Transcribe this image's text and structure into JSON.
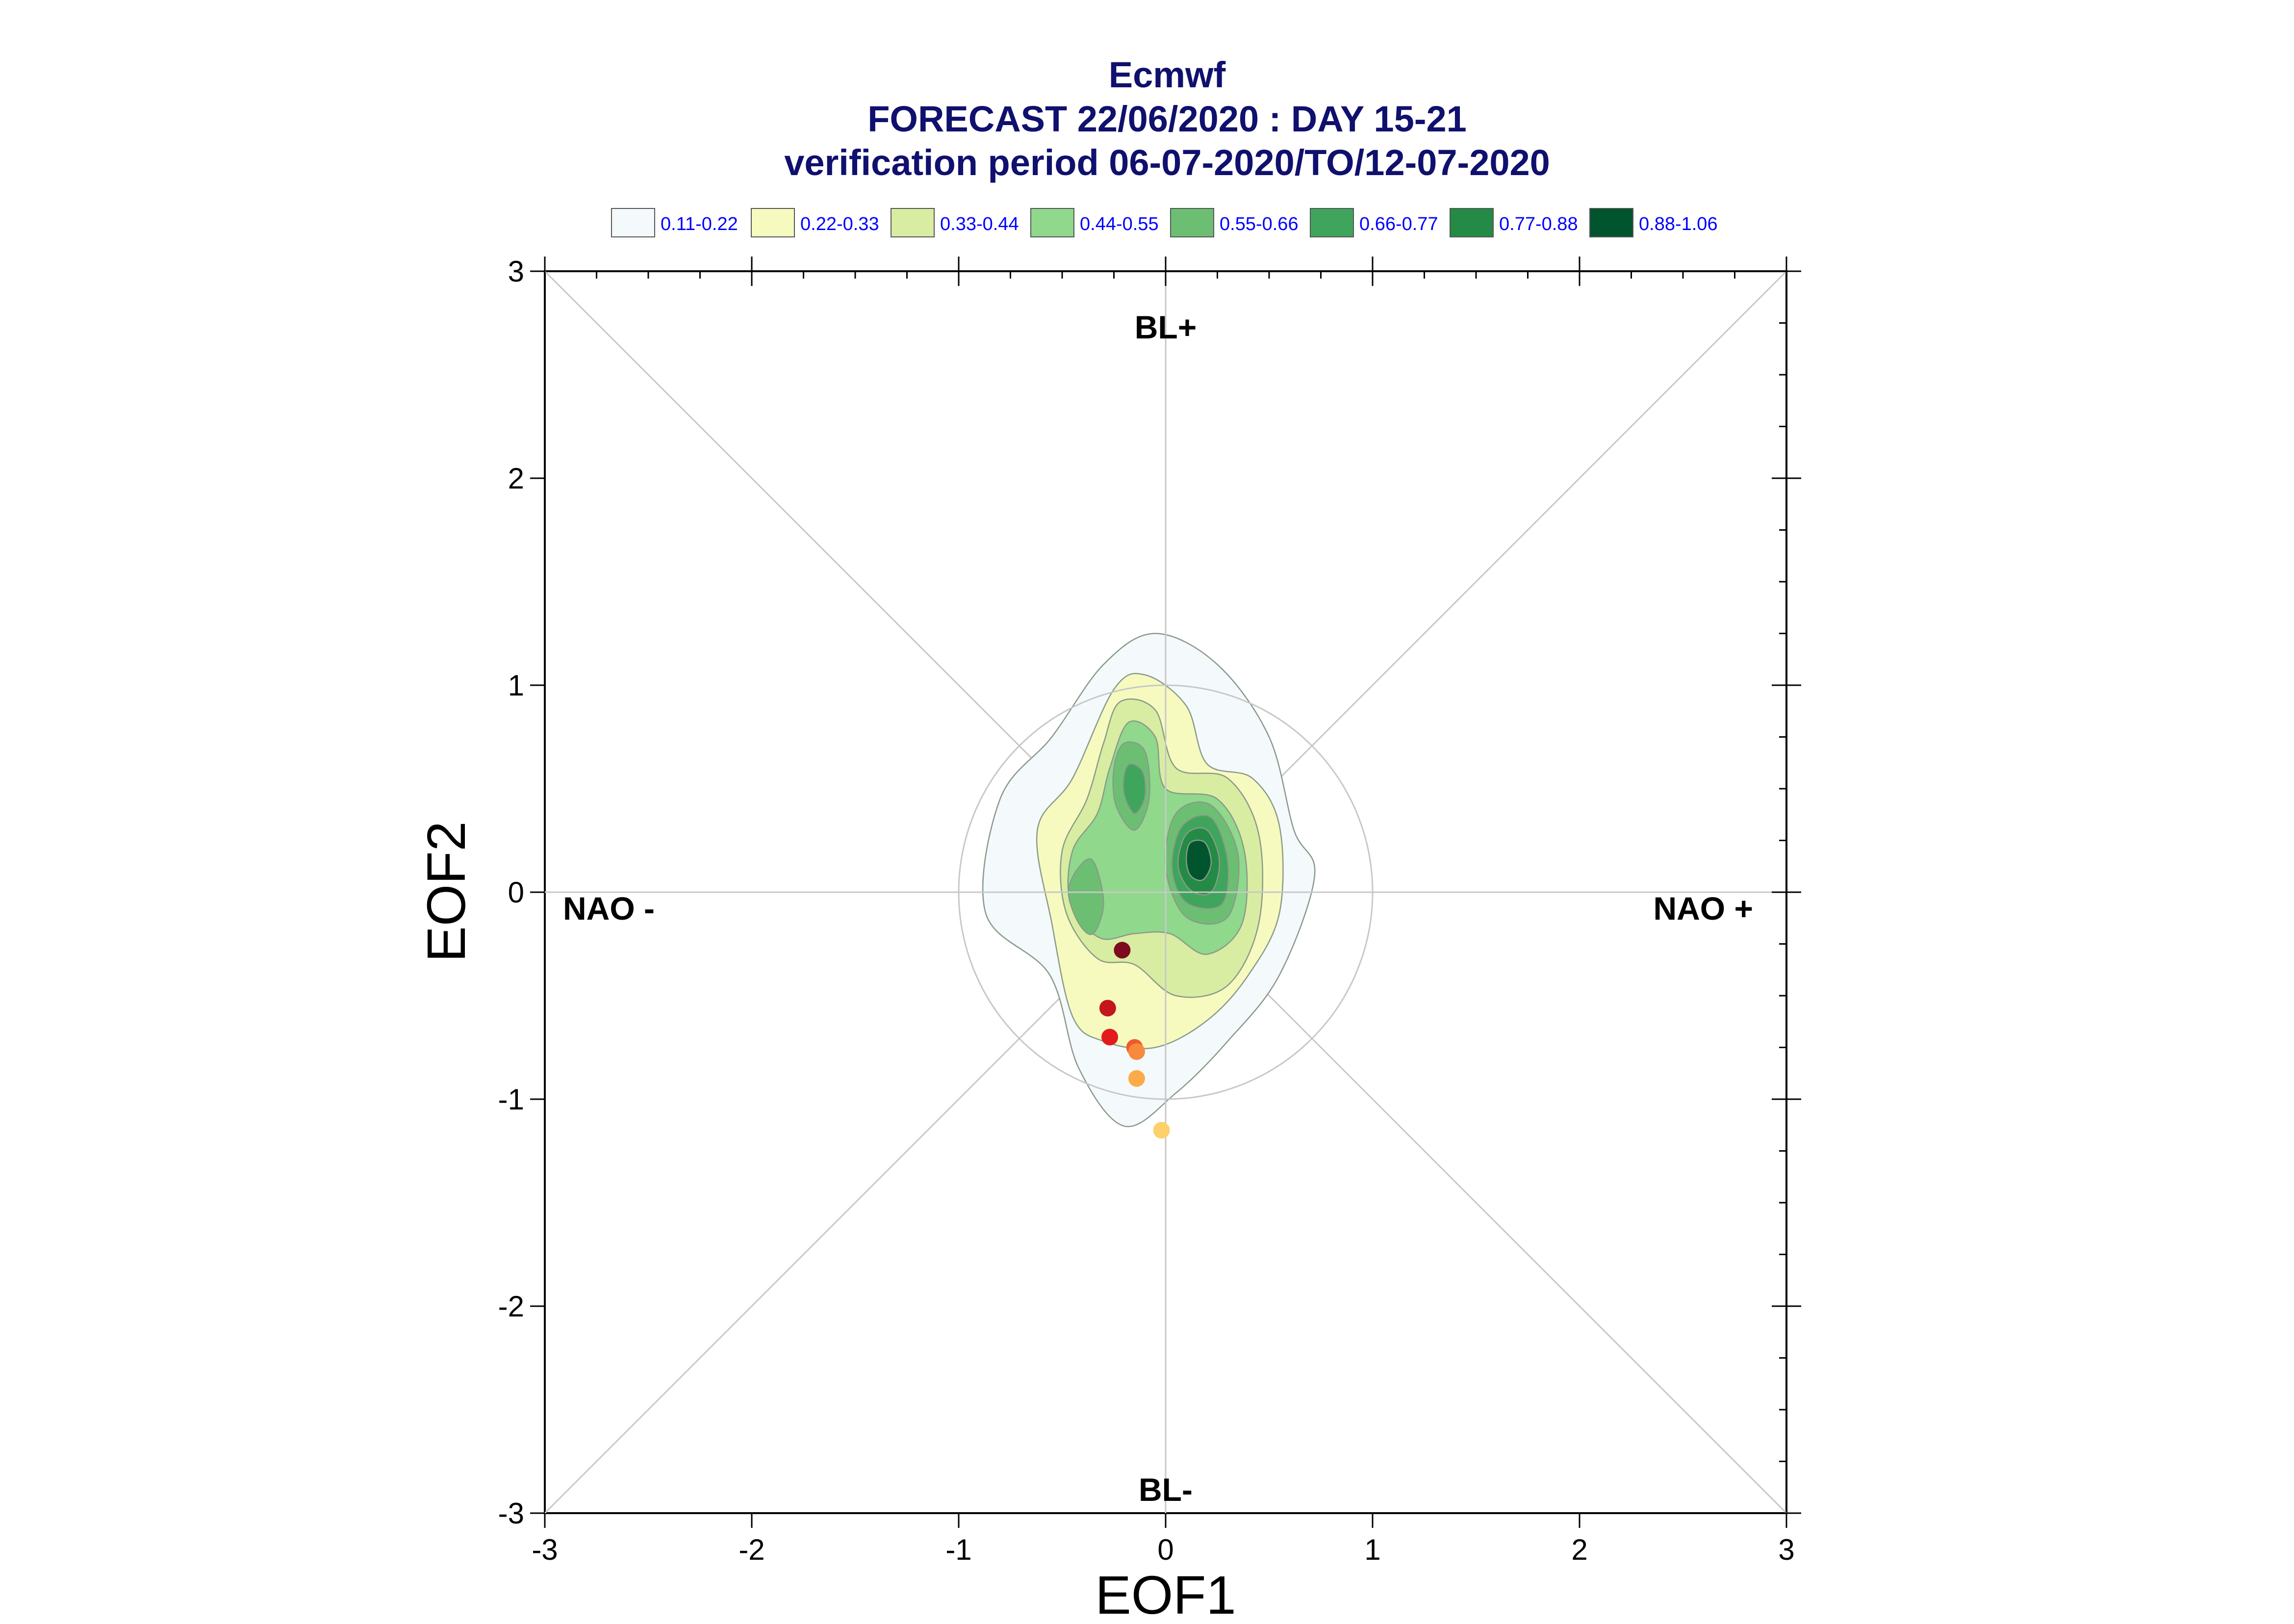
{
  "chart_data": {
    "type": "scatter",
    "title": "Ecmwf",
    "subtitle": "FORECAST 22/06/2020 : DAY 15-21",
    "subtitle2": "verification period 06-07-2020/TO/12-07-2020",
    "xlabel": "EOF1",
    "ylabel": "EOF2",
    "xlim": [
      -3,
      3
    ],
    "ylim": [
      -3,
      3
    ],
    "xticks": [
      "-3",
      "-2",
      "-1",
      "0",
      "1",
      "2",
      "3"
    ],
    "yticks": [
      "-3",
      "-2",
      "-1",
      "0",
      "1",
      "2",
      "3"
    ],
    "grid": false,
    "unit_circle_radius": 1,
    "regime_labels": {
      "top": "BL+",
      "bottom": "BL-",
      "left": "NAO -",
      "right": "NAO +"
    },
    "legend": {
      "placement": "top",
      "entries": [
        {
          "label": "0.11-0.22",
          "color": "#f4f9fc"
        },
        {
          "label": "0.22-0.33",
          "color": "#f6fabf"
        },
        {
          "label": "0.33-0.44",
          "color": "#d9eda2"
        },
        {
          "label": "0.44-0.55",
          "color": "#8fd88c"
        },
        {
          "label": "0.55-0.66",
          "color": "#6cbf72"
        },
        {
          "label": "0.66-0.77",
          "color": "#3fa55c"
        },
        {
          "label": "0.77-0.88",
          "color": "#238b45"
        },
        {
          "label": "0.88-1.06",
          "color": "#00552f"
        }
      ]
    },
    "density_contours": [
      {
        "level": 1,
        "color": "#f4f9fc",
        "points": [
          [
            -0.3,
            1.1
          ],
          [
            -0.05,
            1.25
          ],
          [
            0.25,
            1.1
          ],
          [
            0.5,
            0.75
          ],
          [
            0.62,
            0.3
          ],
          [
            0.72,
            0.08
          ],
          [
            0.55,
            -0.4
          ],
          [
            0.3,
            -0.72
          ],
          [
            0.05,
            -0.97
          ],
          [
            -0.2,
            -1.13
          ],
          [
            -0.42,
            -0.85
          ],
          [
            -0.56,
            -0.4
          ],
          [
            -0.87,
            -0.1
          ],
          [
            -0.8,
            0.45
          ],
          [
            -0.55,
            0.75
          ]
        ]
      },
      {
        "level": 2,
        "color": "#f6fabf",
        "points": [
          [
            -0.25,
            0.98
          ],
          [
            -0.1,
            1.05
          ],
          [
            0.1,
            0.9
          ],
          [
            0.2,
            0.62
          ],
          [
            0.42,
            0.55
          ],
          [
            0.55,
            0.32
          ],
          [
            0.55,
            -0.1
          ],
          [
            0.4,
            -0.4
          ],
          [
            0.2,
            -0.62
          ],
          [
            -0.05,
            -0.75
          ],
          [
            -0.3,
            -0.72
          ],
          [
            -0.45,
            -0.6
          ],
          [
            -0.55,
            -0.15
          ],
          [
            -0.62,
            0.3
          ],
          [
            -0.45,
            0.55
          ]
        ]
      },
      {
        "level": 3,
        "color": "#d9eda2",
        "points": [
          [
            -0.22,
            0.92
          ],
          [
            -0.05,
            0.88
          ],
          [
            0.05,
            0.6
          ],
          [
            0.3,
            0.55
          ],
          [
            0.45,
            0.28
          ],
          [
            0.45,
            -0.15
          ],
          [
            0.3,
            -0.45
          ],
          [
            0.05,
            -0.5
          ],
          [
            -0.15,
            -0.35
          ],
          [
            -0.33,
            -0.32
          ],
          [
            -0.48,
            -0.1
          ],
          [
            -0.5,
            0.2
          ],
          [
            -0.38,
            0.45
          ],
          [
            -0.3,
            0.72
          ]
        ]
      },
      {
        "level": 4,
        "color": "#8fd88c",
        "points": [
          [
            -0.18,
            0.82
          ],
          [
            -0.05,
            0.75
          ],
          [
            0.0,
            0.5
          ],
          [
            0.25,
            0.45
          ],
          [
            0.38,
            0.2
          ],
          [
            0.37,
            -0.15
          ],
          [
            0.2,
            -0.3
          ],
          [
            0.02,
            -0.2
          ],
          [
            -0.15,
            -0.2
          ],
          [
            -0.32,
            -0.22
          ],
          [
            -0.46,
            -0.05
          ],
          [
            -0.45,
            0.2
          ],
          [
            -0.33,
            0.38
          ],
          [
            -0.27,
            0.6
          ]
        ]
      },
      {
        "level": 5,
        "color": "#6cbf72",
        "points": [
          [
            0.05,
            0.38
          ],
          [
            0.22,
            0.42
          ],
          [
            0.35,
            0.18
          ],
          [
            0.3,
            -0.12
          ],
          [
            0.1,
            -0.12
          ],
          [
            0.0,
            0.12
          ]
        ]
      },
      {
        "level": 5,
        "color": "#6cbf72",
        "points": [
          [
            -0.2,
            0.72
          ],
          [
            -0.1,
            0.68
          ],
          [
            -0.08,
            0.45
          ],
          [
            -0.15,
            0.3
          ],
          [
            -0.24,
            0.42
          ],
          [
            -0.25,
            0.6
          ]
        ]
      },
      {
        "level": 5,
        "color": "#6cbf72",
        "points": [
          [
            -0.42,
            0.12
          ],
          [
            -0.35,
            0.15
          ],
          [
            -0.3,
            -0.05
          ],
          [
            -0.35,
            -0.2
          ],
          [
            -0.42,
            -0.15
          ],
          [
            -0.47,
            0.0
          ]
        ]
      },
      {
        "level": 6,
        "color": "#3fa55c",
        "points": [
          [
            0.08,
            0.32
          ],
          [
            0.22,
            0.36
          ],
          [
            0.3,
            0.15
          ],
          [
            0.27,
            -0.06
          ],
          [
            0.1,
            -0.05
          ],
          [
            0.03,
            0.12
          ]
        ]
      },
      {
        "level": 6,
        "color": "#3fa55c",
        "points": [
          [
            -0.17,
            0.62
          ],
          [
            -0.11,
            0.58
          ],
          [
            -0.1,
            0.46
          ],
          [
            -0.15,
            0.38
          ],
          [
            -0.2,
            0.47
          ],
          [
            -0.2,
            0.57
          ]
        ]
      },
      {
        "level": 7,
        "color": "#238b45",
        "points": [
          [
            0.1,
            0.28
          ],
          [
            0.2,
            0.3
          ],
          [
            0.26,
            0.15
          ],
          [
            0.22,
            0.0
          ],
          [
            0.12,
            0.01
          ],
          [
            0.06,
            0.13
          ]
        ]
      },
      {
        "level": 8,
        "color": "#00552f",
        "points": [
          [
            0.12,
            0.24
          ],
          [
            0.19,
            0.24
          ],
          [
            0.22,
            0.14
          ],
          [
            0.18,
            0.06
          ],
          [
            0.12,
            0.08
          ],
          [
            0.1,
            0.16
          ]
        ]
      }
    ],
    "series": [
      {
        "points": [
          {
            "x": -0.21,
            "y": -0.28,
            "color": "#7d0a1e"
          },
          {
            "x": -0.28,
            "y": -0.56,
            "color": "#c4161c"
          },
          {
            "x": -0.27,
            "y": -0.7,
            "color": "#e31a1c"
          },
          {
            "x": -0.15,
            "y": -0.75,
            "color": "#f0592c"
          },
          {
            "x": -0.14,
            "y": -0.77,
            "color": "#f68a3d"
          },
          {
            "x": -0.14,
            "y": -0.9,
            "color": "#fdaa48"
          },
          {
            "x": -0.02,
            "y": -1.15,
            "color": "#fed06a"
          }
        ]
      }
    ]
  }
}
